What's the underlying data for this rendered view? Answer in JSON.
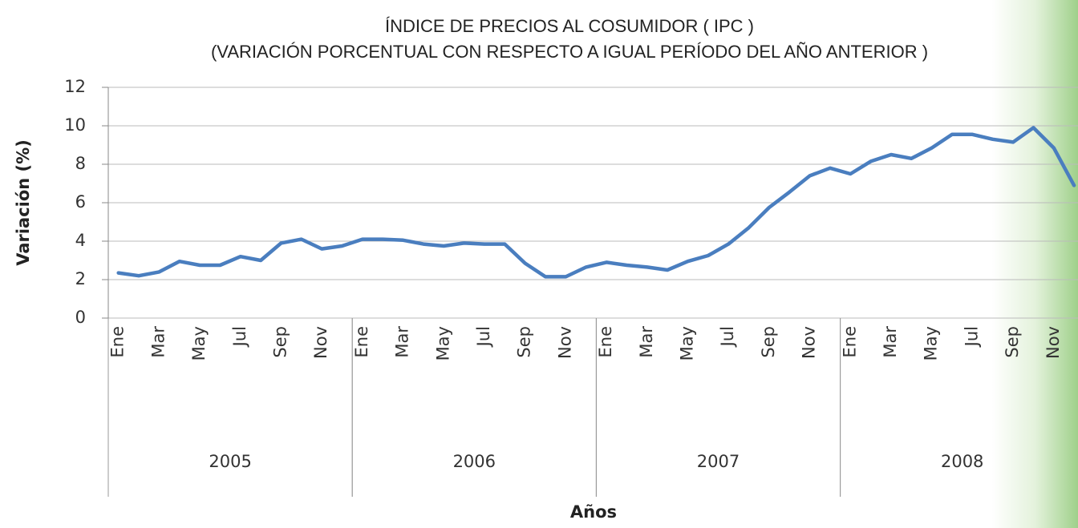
{
  "chart_data": {
    "type": "line",
    "title": "ÍNDICE DE PRECIOS AL COSUMIDOR ( IPC )",
    "subtitle": "(VARIACIÓN PORCENTUAL CON RESPECTO A IGUAL PERÍODO DEL AÑO ANTERIOR )",
    "y_label": "Variación (%)",
    "x_label": "Años",
    "categories": [
      "Ene",
      null,
      "Mar",
      null,
      "May",
      null,
      "Jul",
      null,
      "Sep",
      null,
      "Nov",
      null,
      "Ene",
      null,
      "Mar",
      null,
      "May",
      null,
      "Jul",
      null,
      "Sep",
      null,
      "Nov",
      null,
      "Ene",
      null,
      "Mar",
      null,
      "May",
      null,
      "Jul",
      null,
      "Sep",
      null,
      "Nov",
      null,
      "Ene",
      null,
      "Mar",
      null,
      "May",
      null,
      "Jul",
      null,
      "Sep",
      null,
      "Nov",
      null
    ],
    "years": [
      "2005",
      "2006",
      "2007",
      "2008"
    ],
    "values": [
      2.35,
      2.2,
      2.4,
      2.95,
      2.75,
      2.75,
      3.2,
      3.0,
      3.9,
      4.1,
      3.6,
      3.75,
      4.1,
      4.1,
      4.05,
      3.85,
      3.75,
      3.9,
      3.85,
      3.85,
      2.85,
      2.15,
      2.15,
      2.65,
      2.9,
      2.75,
      2.65,
      2.5,
      2.95,
      3.25,
      3.85,
      4.7,
      5.75,
      6.55,
      7.4,
      7.8,
      7.5,
      8.15,
      8.5,
      8.3,
      8.85,
      9.55,
      9.55,
      9.3,
      9.15,
      9.9,
      8.85,
      6.9
    ],
    "color": "#4a7ebf",
    "ylim": [
      0,
      12
    ],
    "yticks": [
      0,
      2,
      4,
      6,
      8,
      10,
      12
    ],
    "grid": true
  }
}
